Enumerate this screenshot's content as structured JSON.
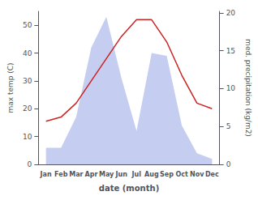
{
  "chart_data": {
    "type": "line",
    "categories": [
      "Jan",
      "Feb",
      "Mar",
      "Apr",
      "May",
      "Jun",
      "Jul",
      "Aug",
      "Sep",
      "Oct",
      "Nov",
      "Dec"
    ],
    "series": [
      {
        "type": "area",
        "color": "#c5cef0",
        "values": [
          6.0,
          6.0,
          17.0,
          42.0,
          53.0,
          31.0,
          12.0,
          40.0,
          39.0,
          14.0,
          4.0,
          2.0
        ]
      },
      {
        "type": "line",
        "color": "#cc2222",
        "values": [
          15.5,
          17.0,
          22.0,
          30.0,
          38.0,
          46.0,
          52.0,
          52.0,
          44.0,
          32.0,
          22.0,
          20.0
        ]
      }
    ],
    "xlabel": "date (month)",
    "ylabel": "max temp (C)",
    "y2label": "med. precipitation (kg/m2)",
    "ylim": [
      0,
      55
    ],
    "yticks": [
      0,
      10,
      20,
      30,
      40,
      50
    ],
    "y2lim": [
      0,
      20.2
    ],
    "y2ticks": [
      0,
      5,
      10,
      15,
      20
    ],
    "grid": false
  }
}
